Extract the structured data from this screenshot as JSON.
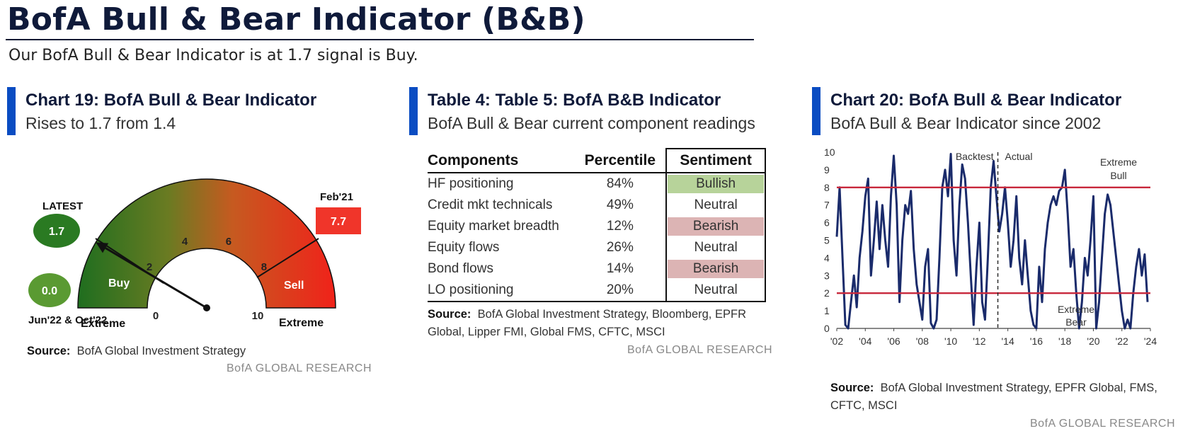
{
  "header": {
    "title": "BofA Bull & Bear Indicator (B&B)",
    "subtitle": "Our BofA Bull & Bear Indicator is at 1.7 signal is Buy."
  },
  "left_panel": {
    "heading": "Chart 19: BofA Bull & Bear Indicator",
    "subheading": "Rises to 1.7 from 1.4",
    "source_label": "Source:",
    "source_text": "BofA Global Investment Strategy",
    "research": "BofA GLOBAL RESEARCH"
  },
  "middle_panel": {
    "heading": "Table 4: Table 5: BofA B&B Indicator",
    "subheading": "BofA Bull & Bear current component readings",
    "source_label": "Source:",
    "source_text": "BofA Global Investment Strategy, Bloomberg, EPFR Global, Lipper FMI, Global FMS, CFTC, MSCI",
    "research": "BofA GLOBAL RESEARCH"
  },
  "right_panel": {
    "heading": "Chart 20: BofA Bull & Bear Indicator",
    "subheading": "BofA Bull & Bear Indicator since 2002",
    "source_label": "Source:",
    "source_text": "BofA Global Investment Strategy, EPFR Global, FMS, CFTC, MSCI",
    "research": "BofA GLOBAL RESEARCH"
  },
  "colors": {
    "accent_bar": "#0a4cc2",
    "gauge_green": "#1f6e1f",
    "gauge_red": "#f0221a",
    "line_navy": "#1a2b6b",
    "threshold_red": "#c8283c",
    "bullish_bg": "#b7d39a",
    "bearish_bg": "#dcb4b4"
  },
  "chart_data": [
    {
      "type": "gauge",
      "range": [
        0,
        10
      ],
      "tick_labels": [
        "0",
        "2",
        "4",
        "6",
        "8",
        "10"
      ],
      "value": 1.7,
      "zone_labels": {
        "buy": "Buy",
        "sell": "Sell",
        "extreme_left": "Extreme",
        "extreme_right": "Extreme"
      },
      "markers": {
        "latest_label": "LATEST",
        "latest_value": "1.7",
        "low_value": "0.0",
        "low_label": "Jun'22 & Oct'22",
        "high_label": "Feb'21",
        "high_value": "7.7"
      }
    },
    {
      "type": "table",
      "columns": [
        "Components",
        "Percentile",
        "Sentiment"
      ],
      "rows": [
        {
          "component": "HF positioning",
          "percentile": "84%",
          "sentiment": "Bullish"
        },
        {
          "component": "Credit mkt technicals",
          "percentile": "49%",
          "sentiment": "Neutral"
        },
        {
          "component": "Equity market breadth",
          "percentile": "12%",
          "sentiment": "Bearish"
        },
        {
          "component": "Equity flows",
          "percentile": "26%",
          "sentiment": "Neutral"
        },
        {
          "component": "Bond flows",
          "percentile": "14%",
          "sentiment": "Bearish"
        },
        {
          "component": "LO positioning",
          "percentile": "20%",
          "sentiment": "Neutral"
        }
      ]
    },
    {
      "type": "line",
      "x_ticks": [
        "'02",
        "'04",
        "'06",
        "'08",
        "'10",
        "'12",
        "'14",
        "'16",
        "'18",
        "'20",
        "'22",
        "'24"
      ],
      "xlim": [
        2002,
        2024
      ],
      "ylim": [
        0,
        10
      ],
      "y_ticks": [
        "0",
        "1",
        "2",
        "3",
        "4",
        "5",
        "6",
        "7",
        "8",
        "9",
        "10"
      ],
      "thresholds": [
        8,
        2
      ],
      "divider_x": 2013.3,
      "divider_labels": {
        "left": "Backtest",
        "right": "Actual"
      },
      "annotations": {
        "bull": [
          "Extreme",
          "Bull"
        ],
        "bear": [
          "Extreme",
          "Bear"
        ]
      },
      "series": [
        {
          "x": [
            2002.0,
            2002.2,
            2002.4,
            2002.6,
            2002.8,
            2003.0,
            2003.2,
            2003.4,
            2003.6,
            2003.8,
            2004.0,
            2004.2,
            2004.4,
            2004.6,
            2004.8,
            2005.0,
            2005.2,
            2005.4,
            2005.6,
            2005.8,
            2006.0,
            2006.2,
            2006.4,
            2006.6,
            2006.8,
            2007.0,
            2007.2,
            2007.4,
            2007.6,
            2007.8,
            2008.0,
            2008.2,
            2008.4,
            2008.6,
            2008.8,
            2009.0,
            2009.2,
            2009.4,
            2009.6,
            2009.8,
            2010.0,
            2010.2,
            2010.4,
            2010.6,
            2010.8,
            2011.0,
            2011.2,
            2011.4,
            2011.6,
            2011.8,
            2012.0,
            2012.2,
            2012.4,
            2012.6,
            2012.8,
            2013.0,
            2013.2,
            2013.4,
            2013.6,
            2013.8,
            2014.0,
            2014.2,
            2014.4,
            2014.6,
            2014.8,
            2015.0,
            2015.2,
            2015.4,
            2015.6,
            2015.8,
            2016.0,
            2016.2,
            2016.4,
            2016.6,
            2016.8,
            2017.0,
            2017.2,
            2017.4,
            2017.6,
            2017.8,
            2018.0,
            2018.2,
            2018.4,
            2018.6,
            2018.8,
            2019.0,
            2019.2,
            2019.4,
            2019.6,
            2019.8,
            2020.0,
            2020.2,
            2020.4,
            2020.6,
            2020.8,
            2021.0,
            2021.2,
            2021.4,
            2021.6,
            2021.8,
            2022.0,
            2022.2,
            2022.4,
            2022.6,
            2022.8,
            2023.0,
            2023.2,
            2023.4,
            2023.6,
            2023.8
          ],
          "values": [
            5.2,
            8.0,
            4.0,
            0.2,
            0.0,
            1.5,
            3.0,
            1.2,
            4.0,
            5.5,
            7.5,
            8.5,
            3.0,
            5.0,
            7.2,
            4.5,
            7.0,
            5.0,
            3.5,
            7.5,
            9.8,
            7.0,
            1.5,
            5.0,
            7.0,
            6.5,
            7.8,
            4.5,
            2.5,
            1.5,
            0.5,
            3.5,
            4.5,
            0.3,
            0.0,
            0.5,
            4.0,
            8.0,
            9.0,
            7.5,
            9.9,
            5.0,
            3.0,
            7.0,
            9.3,
            8.5,
            6.0,
            3.0,
            0.2,
            3.5,
            6.0,
            1.5,
            0.5,
            4.0,
            8.0,
            9.5,
            7.5,
            5.5,
            6.5,
            8.0,
            6.0,
            3.5,
            5.0,
            7.5,
            4.0,
            2.5,
            5.0,
            3.0,
            1.0,
            0.2,
            0.0,
            3.5,
            1.5,
            4.5,
            6.0,
            7.0,
            7.5,
            7.0,
            7.8,
            8.0,
            9.0,
            6.5,
            3.5,
            4.5,
            2.0,
            0.0,
            1.5,
            4.0,
            3.0,
            5.0,
            7.5,
            0.0,
            1.5,
            4.0,
            6.5,
            7.6,
            7.0,
            5.5,
            4.0,
            2.5,
            1.0,
            0.0,
            0.5,
            0.0,
            2.0,
            3.5,
            4.5,
            3.0,
            4.2,
            1.5
          ]
        }
      ]
    }
  ]
}
